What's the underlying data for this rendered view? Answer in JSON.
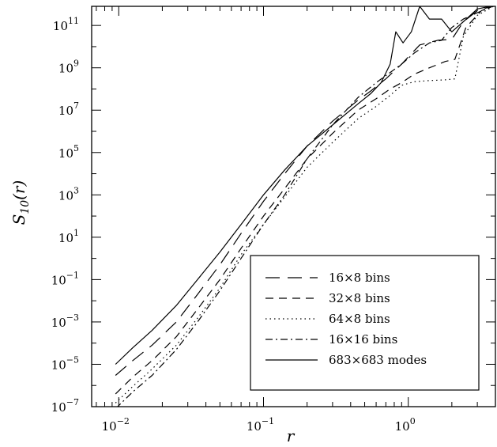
{
  "chart_data": {
    "type": "line",
    "xlabel": "r",
    "ylabel": "S",
    "ylabel_sub": "10",
    "ylabel_tail": "(r)",
    "x_scale": "log",
    "y_scale": "log",
    "xlim": [
      0.0065,
      4.0
    ],
    "ylim": [
      1e-07,
      800000000000.0
    ],
    "grid": false,
    "legend_position": "bottom-right",
    "x_tick_labels": [
      {
        "value": 0.01,
        "base": "10",
        "exp": "−2"
      },
      {
        "value": 0.1,
        "base": "10",
        "exp": "−1"
      },
      {
        "value": 1,
        "base": "10",
        "exp": "0"
      }
    ],
    "y_tick_labels": [
      {
        "value": 1e-07,
        "base": "10",
        "exp": "−7"
      },
      {
        "value": 1e-05,
        "base": "10",
        "exp": "−5"
      },
      {
        "value": 0.001,
        "base": "10",
        "exp": "−3"
      },
      {
        "value": 0.1,
        "base": "10",
        "exp": "−1"
      },
      {
        "value": 10.0,
        "base": "10",
        "exp": "1"
      },
      {
        "value": 1000.0,
        "base": "10",
        "exp": "3"
      },
      {
        "value": 100000.0,
        "base": "10",
        "exp": "5"
      },
      {
        "value": 10000000.0,
        "base": "10",
        "exp": "7"
      },
      {
        "value": 1000000000.0,
        "base": "10",
        "exp": "9"
      },
      {
        "value": 100000000000.0,
        "base": "10",
        "exp": "11"
      }
    ],
    "series": [
      {
        "name": "16×8 bins",
        "dash": "long-dash",
        "points": [
          [
            0.0095,
            3e-06
          ],
          [
            0.0125,
            1.5e-05
          ],
          [
            0.017,
            8e-05
          ],
          [
            0.025,
            0.001
          ],
          [
            0.035,
            0.02
          ],
          [
            0.05,
            0.5
          ],
          [
            0.07,
            15
          ],
          [
            0.1,
            500
          ],
          [
            0.14,
            10000.0
          ],
          [
            0.2,
            200000.0
          ],
          [
            0.3,
            3000000.0
          ],
          [
            0.45,
            30000000.0
          ],
          [
            0.55,
            80000000.0
          ],
          [
            0.7,
            300000000.0
          ],
          [
            0.9,
            1500000000.0
          ],
          [
            1.2,
            12000000000.0
          ],
          [
            1.6,
            20000000000.0
          ],
          [
            2.0,
            22000000000.0
          ],
          [
            2.4,
            150000000000.0
          ],
          [
            3.0,
            500000000000.0
          ],
          [
            4.0,
            900000000000.0
          ]
        ]
      },
      {
        "name": "32×8 bins",
        "dash": "short-dash",
        "points": [
          [
            0.0095,
            4e-07
          ],
          [
            0.0125,
            2.5e-06
          ],
          [
            0.017,
            1.5e-05
          ],
          [
            0.025,
            0.0002
          ],
          [
            0.035,
            0.004
          ],
          [
            0.05,
            0.1
          ],
          [
            0.07,
            3
          ],
          [
            0.1,
            100
          ],
          [
            0.14,
            2000.0
          ],
          [
            0.2,
            50000.0
          ],
          [
            0.3,
            800000.0
          ],
          [
            0.45,
            10000000.0
          ],
          [
            0.6,
            35000000.0
          ],
          [
            0.75,
            100000000.0
          ],
          [
            0.9,
            200000000.0
          ],
          [
            1.1,
            500000000.0
          ],
          [
            1.4,
            1000000000.0
          ],
          [
            1.8,
            2000000000.0
          ],
          [
            2.1,
            2500000000.0
          ],
          [
            2.5,
            80000000000.0
          ],
          [
            3.2,
            500000000000.0
          ],
          [
            4.0,
            900000000000.0
          ]
        ]
      },
      {
        "name": "64×8 bins",
        "dash": "dotted",
        "points": [
          [
            0.0095,
            1.5e-07
          ],
          [
            0.0125,
            9e-07
          ],
          [
            0.017,
            6e-06
          ],
          [
            0.025,
            8e-05
          ],
          [
            0.035,
            0.0015
          ],
          [
            0.05,
            0.04
          ],
          [
            0.07,
            1.5
          ],
          [
            0.1,
            40
          ],
          [
            0.14,
            800
          ],
          [
            0.2,
            20000.0
          ],
          [
            0.3,
            300000.0
          ],
          [
            0.45,
            4000000.0
          ],
          [
            0.6,
            15000000.0
          ],
          [
            0.75,
            50000000.0
          ],
          [
            0.9,
            150000000.0
          ],
          [
            1.1,
            220000000.0
          ],
          [
            1.4,
            250000000.0
          ],
          [
            1.8,
            270000000.0
          ],
          [
            2.1,
            300000000.0
          ],
          [
            2.4,
            30000000000.0
          ],
          [
            3.0,
            300000000000.0
          ],
          [
            4.0,
            900000000000.0
          ]
        ]
      },
      {
        "name": "16×16 bins",
        "dash": "dash-dot",
        "points": [
          [
            0.0095,
            8e-08
          ],
          [
            0.0125,
            5e-07
          ],
          [
            0.017,
            3e-06
          ],
          [
            0.025,
            5e-05
          ],
          [
            0.035,
            0.001
          ],
          [
            0.05,
            0.03
          ],
          [
            0.07,
            1
          ],
          [
            0.1,
            40
          ],
          [
            0.14,
            1000.0
          ],
          [
            0.2,
            50000.0
          ],
          [
            0.3,
            2000000.0
          ],
          [
            0.45,
            40000000.0
          ],
          [
            0.6,
            200000000.0
          ],
          [
            0.75,
            600000000.0
          ],
          [
            0.9,
            1500000000.0
          ],
          [
            1.1,
            5000000000.0
          ],
          [
            1.4,
            15000000000.0
          ],
          [
            1.7,
            20000000000.0
          ],
          [
            2.0,
            80000000000.0
          ],
          [
            2.4,
            200000000000.0
          ],
          [
            3.0,
            400000000000.0
          ],
          [
            4.0,
            900000000000.0
          ]
        ]
      },
      {
        "name": "683×683 modes",
        "dash": "solid",
        "points": [
          [
            0.0095,
            1e-05
          ],
          [
            0.0125,
            6e-05
          ],
          [
            0.017,
            0.0004
          ],
          [
            0.025,
            0.006
          ],
          [
            0.035,
            0.1
          ],
          [
            0.05,
            2
          ],
          [
            0.07,
            40
          ],
          [
            0.1,
            1000.0
          ],
          [
            0.14,
            15000.0
          ],
          [
            0.2,
            200000.0
          ],
          [
            0.3,
            2000000.0
          ],
          [
            0.45,
            20000000.0
          ],
          [
            0.55,
            60000000.0
          ],
          [
            0.65,
            200000000.0
          ],
          [
            0.75,
            1500000000.0
          ],
          [
            0.82,
            50000000000.0
          ],
          [
            0.92,
            15000000000.0
          ],
          [
            1.05,
            50000000000.0
          ],
          [
            1.2,
            800000000000.0
          ],
          [
            1.4,
            200000000000.0
          ],
          [
            1.7,
            200000000000.0
          ],
          [
            2.0,
            50000000000.0
          ],
          [
            2.4,
            150000000000.0
          ],
          [
            3.0,
            600000000000.0
          ],
          [
            4.0,
            900000000000.0
          ]
        ]
      }
    ]
  }
}
